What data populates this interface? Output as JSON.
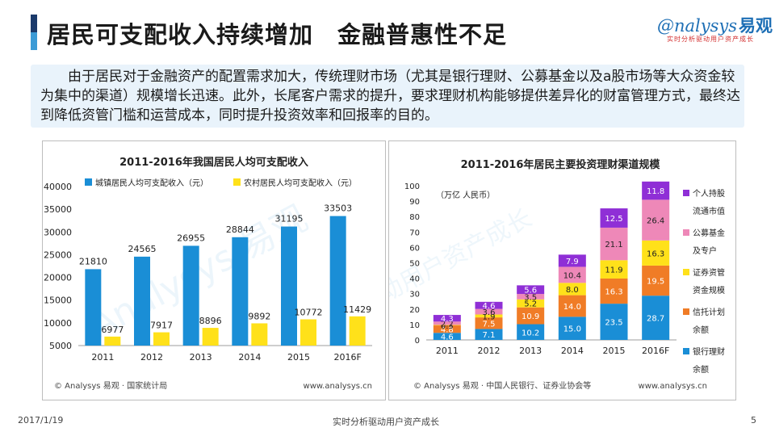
{
  "header": {
    "title": "居民可支配收入持续增加　金融普惠性不足",
    "logo_text": "nalysys",
    "logo_cn": "易观",
    "logo_slogan": "实时分析驱动用户资产成长"
  },
  "intro": "由于居民对于金融资产的配置需求加大，传统理财市场（尤其是银行理财、公募基金以及a股市场等大众资金较为集中的渠道）规模增长迅速。此外，长尾客户需求的提升，要求理财机构能够提供差异化的财富管理方式，最终达到降低资管门槛和运营成本，同时提升投资效率和回报率的目的。",
  "watermark": "Analysys 易观",
  "watermark_slogan": "实时分析驱动用户资产成长",
  "colors": {
    "urban": "#1a8ed6",
    "rural": "#ffe11a",
    "bank": "#1a8ed6",
    "trust": "#f07c26",
    "securities": "#ffe11a",
    "fund": "#ee88b8",
    "stock": "#8f2fd6",
    "title_bar_dark": "#1b3a6b",
    "title_bar_light": "#3c9bd6"
  },
  "chart_data": [
    {
      "type": "bar",
      "title": "2011-2016年我国居民人均可支配收入",
      "categories": [
        "2011",
        "2012",
        "2013",
        "2014",
        "2015",
        "2016F"
      ],
      "series": [
        {
          "name": "城镇居民人均可支配收入（元）",
          "values": [
            21810,
            24565,
            26955,
            28844,
            31195,
            33503
          ]
        },
        {
          "name": "农村居民人均可支配收入（元）",
          "values": [
            6977,
            7917,
            8896,
            9892,
            10772,
            11429
          ]
        }
      ],
      "yticks": [
        5000,
        10000,
        15000,
        20000,
        25000,
        30000,
        35000,
        40000
      ],
      "ylim": [
        5000,
        40000
      ],
      "legend": "top",
      "source": "© Analysys 易观 · 国家统计局",
      "site": "www.analysys.cn"
    },
    {
      "type": "bar",
      "stacked": true,
      "title": "2011-2016年居民主要投资理财渠道规模",
      "unit": "（万亿 人民币）",
      "categories": [
        "2011",
        "2012",
        "2013",
        "2014",
        "2015",
        "2016F"
      ],
      "series": [
        {
          "name": "银行理财余额",
          "legend_lines": [
            "银行理财",
            "余额"
          ],
          "values": [
            4.6,
            7.1,
            10.2,
            15.0,
            23.5,
            28.7
          ]
        },
        {
          "name": "信托计划余额",
          "legend_lines": [
            "信托计划",
            "余额"
          ],
          "values": [
            4.8,
            7.5,
            10.9,
            14.0,
            16.3,
            19.5
          ]
        },
        {
          "name": "证券资管资金规模",
          "legend_lines": [
            "证券资管",
            "资金规模"
          ],
          "values": [
            0.3,
            1.9,
            5.2,
            8.0,
            11.9,
            16.3
          ]
        },
        {
          "name": "公募基金及专户",
          "legend_lines": [
            "公募基金",
            "及专户"
          ],
          "values": [
            2.2,
            3.6,
            3.5,
            10.4,
            21.1,
            26.4
          ]
        },
        {
          "name": "个人持股流通市值",
          "legend_lines": [
            "个人持股",
            "流通市值"
          ],
          "values": [
            4.3,
            4.6,
            5.6,
            7.9,
            12.5,
            11.8
          ]
        }
      ],
      "yticks": [
        0,
        10,
        20,
        30,
        40,
        50,
        60,
        70,
        80,
        90,
        100
      ],
      "ylim": [
        0,
        100
      ],
      "legend": "right",
      "source": "© Analysys 易观 · 中国人民银行、证券业协会等",
      "site": "www.analysys.cn"
    }
  ],
  "footer": {
    "date": "2017/1/19",
    "slogan": "实时分析驱动用户资产成长",
    "page": "5"
  }
}
